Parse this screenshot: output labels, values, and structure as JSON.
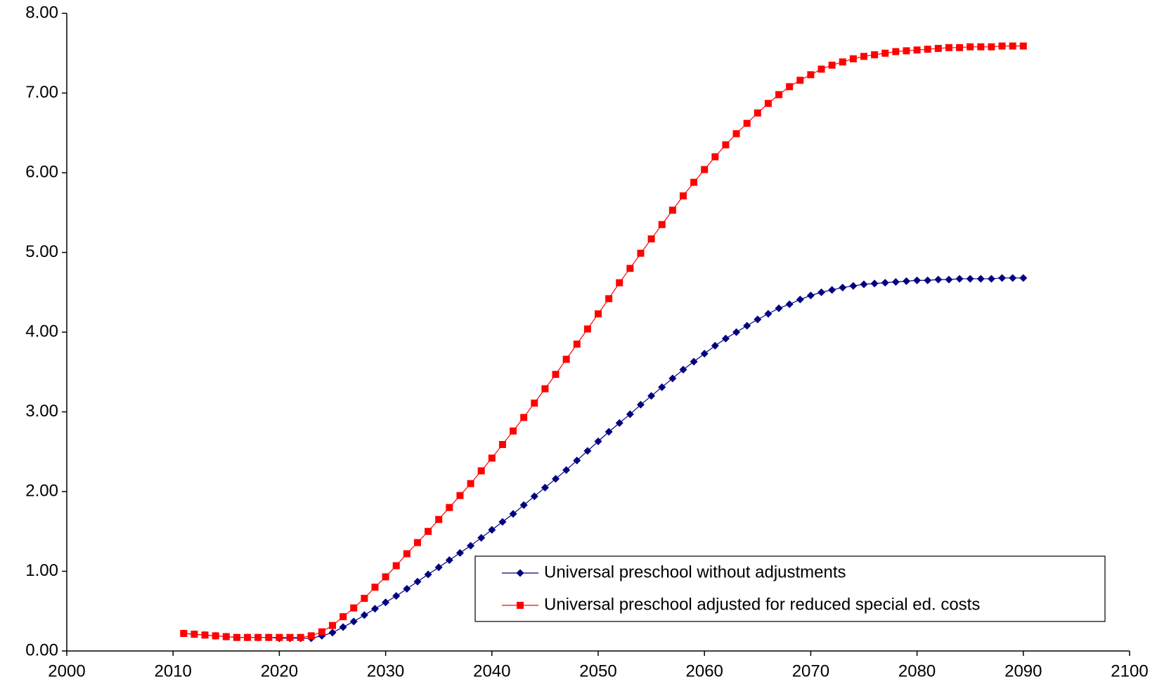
{
  "chart_data": {
    "type": "line",
    "x": [
      2011,
      2012,
      2013,
      2014,
      2015,
      2016,
      2017,
      2018,
      2019,
      2020,
      2021,
      2022,
      2023,
      2024,
      2025,
      2026,
      2027,
      2028,
      2029,
      2030,
      2031,
      2032,
      2033,
      2034,
      2035,
      2036,
      2037,
      2038,
      2039,
      2040,
      2041,
      2042,
      2043,
      2044,
      2045,
      2046,
      2047,
      2048,
      2049,
      2050,
      2051,
      2052,
      2053,
      2054,
      2055,
      2056,
      2057,
      2058,
      2059,
      2060,
      2061,
      2062,
      2063,
      2064,
      2065,
      2066,
      2067,
      2068,
      2069,
      2070,
      2071,
      2072,
      2073,
      2074,
      2075,
      2076,
      2077,
      2078,
      2079,
      2080,
      2081,
      2082,
      2083,
      2084,
      2085,
      2086,
      2087,
      2088,
      2089,
      2090
    ],
    "series": [
      {
        "name": "Universal preschool without adjustments",
        "color": "#000080",
        "marker": "diamond",
        "values": [
          0.22,
          0.21,
          0.2,
          0.19,
          0.18,
          0.17,
          0.17,
          0.17,
          0.17,
          0.16,
          0.16,
          0.16,
          0.16,
          0.19,
          0.23,
          0.3,
          0.37,
          0.45,
          0.53,
          0.61,
          0.69,
          0.78,
          0.87,
          0.96,
          1.05,
          1.14,
          1.23,
          1.32,
          1.42,
          1.52,
          1.62,
          1.72,
          1.83,
          1.94,
          2.05,
          2.16,
          2.27,
          2.39,
          2.51,
          2.63,
          2.75,
          2.86,
          2.97,
          3.09,
          3.2,
          3.31,
          3.42,
          3.53,
          3.63,
          3.73,
          3.83,
          3.92,
          4.0,
          4.08,
          4.16,
          4.23,
          4.3,
          4.35,
          4.41,
          4.46,
          4.5,
          4.53,
          4.56,
          4.58,
          4.6,
          4.61,
          4.62,
          4.63,
          4.64,
          4.65,
          4.65,
          4.66,
          4.66,
          4.67,
          4.67,
          4.67,
          4.67,
          4.68,
          4.68,
          4.68
        ]
      },
      {
        "name": "Universal preschool adjusted for reduced special ed. costs",
        "color": "#ff0000",
        "marker": "square",
        "values": [
          0.22,
          0.21,
          0.2,
          0.19,
          0.18,
          0.17,
          0.17,
          0.17,
          0.17,
          0.17,
          0.17,
          0.17,
          0.19,
          0.24,
          0.32,
          0.43,
          0.54,
          0.66,
          0.8,
          0.93,
          1.07,
          1.22,
          1.36,
          1.5,
          1.65,
          1.8,
          1.95,
          2.1,
          2.26,
          2.42,
          2.59,
          2.76,
          2.93,
          3.11,
          3.29,
          3.47,
          3.66,
          3.85,
          4.04,
          4.23,
          4.42,
          4.62,
          4.8,
          4.99,
          5.17,
          5.35,
          5.53,
          5.71,
          5.88,
          6.04,
          6.2,
          6.35,
          6.49,
          6.62,
          6.75,
          6.87,
          6.98,
          7.08,
          7.16,
          7.23,
          7.3,
          7.35,
          7.39,
          7.43,
          7.46,
          7.48,
          7.5,
          7.52,
          7.53,
          7.54,
          7.55,
          7.56,
          7.57,
          7.57,
          7.58,
          7.58,
          7.58,
          7.59,
          7.59,
          7.59
        ]
      }
    ],
    "xlim": [
      2000,
      2100
    ],
    "xticks": [
      2000,
      2010,
      2020,
      2030,
      2040,
      2050,
      2060,
      2070,
      2080,
      2090,
      2100
    ],
    "ylim": [
      0,
      8
    ],
    "yticks": [
      {
        "value": 0,
        "label": "0.00"
      },
      {
        "value": 1,
        "label": "1.00"
      },
      {
        "value": 2,
        "label": "2.00"
      },
      {
        "value": 3,
        "label": "3.00"
      },
      {
        "value": 4,
        "label": "4.00"
      },
      {
        "value": 5,
        "label": "5.00"
      },
      {
        "value": 6,
        "label": "6.00"
      },
      {
        "value": 7,
        "label": "7.00"
      },
      {
        "value": 8,
        "label": "8.00"
      }
    ],
    "grid": false,
    "legend": "lower right"
  }
}
